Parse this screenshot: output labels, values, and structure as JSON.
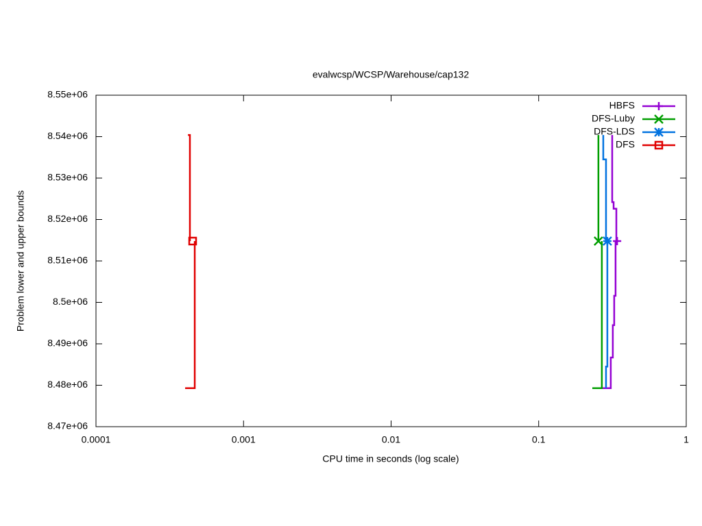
{
  "chart_data": {
    "type": "line",
    "title": "evalwcsp/WCSP/Warehouse/cap132",
    "xlabel": "CPU time in seconds (log scale)",
    "ylabel": "Problem lower and upper bounds",
    "xscale": "log",
    "xlim": [
      0.0001,
      1
    ],
    "xticks": [
      0.0001,
      0.001,
      0.01,
      0.1,
      1
    ],
    "ylim": [
      8470000,
      8550000
    ],
    "yticks": [
      {
        "value": 8470000,
        "label": "8.47e+06"
      },
      {
        "value": 8480000,
        "label": "8.48e+06"
      },
      {
        "value": 8490000,
        "label": "8.49e+06"
      },
      {
        "value": 8500000,
        "label": "8.5e+06"
      },
      {
        "value": 8510000,
        "label": "8.51e+06"
      },
      {
        "value": 8520000,
        "label": "8.52e+06"
      },
      {
        "value": 8530000,
        "label": "8.53e+06"
      },
      {
        "value": 8540000,
        "label": "8.54e+06"
      },
      {
        "value": 8550000,
        "label": "8.55e+06"
      }
    ],
    "legend": "top-right",
    "series": [
      {
        "name": "HBFS",
        "color": "#9400d3",
        "marker": "plus",
        "x": [
          0.315,
          0.315,
          0.322,
          0.322,
          0.336,
          0.336,
          null,
          0.246,
          0.308,
          0.308,
          0.318,
          0.318,
          0.325,
          0.325,
          0.332,
          0.332
        ],
        "values": [
          8540400,
          8524200,
          8524200,
          8522600,
          8522600,
          8514800,
          null,
          8479300,
          8479300,
          8486700,
          8486700,
          8494500,
          8494500,
          8501600,
          8501600,
          8514800
        ],
        "point_x": 0.34,
        "point_y": 8514800
      },
      {
        "name": "DFS-Luby",
        "color": "#009e00",
        "marker": "cross",
        "x": [
          0.254,
          0.254,
          null,
          0.231,
          0.268,
          0.268
        ],
        "values": [
          8540400,
          8514800,
          null,
          8479300,
          8479300,
          8514800
        ],
        "point_x": 0.254,
        "point_y": 8514800
      },
      {
        "name": "DFS-LDS",
        "color": "#0072e0",
        "marker": "star",
        "x": [
          0.274,
          0.274,
          0.286,
          0.286,
          null,
          0.286,
          0.286,
          0.292,
          0.292
        ],
        "values": [
          8540400,
          8534500,
          8534500,
          8514800,
          null,
          8479300,
          8484500,
          8484500,
          8514800
        ],
        "point_x": 0.292,
        "point_y": 8514800
      },
      {
        "name": "DFS",
        "color": "#e00000",
        "marker": "square",
        "x": [
          0.00042,
          0.000433,
          0.000433,
          null,
          0.000402,
          0.000467,
          0.000467
        ],
        "values": [
          8540400,
          8540400,
          8514800,
          null,
          8479300,
          8479300,
          8514800
        ],
        "point_x": 0.000452,
        "point_y": 8514800
      }
    ]
  }
}
